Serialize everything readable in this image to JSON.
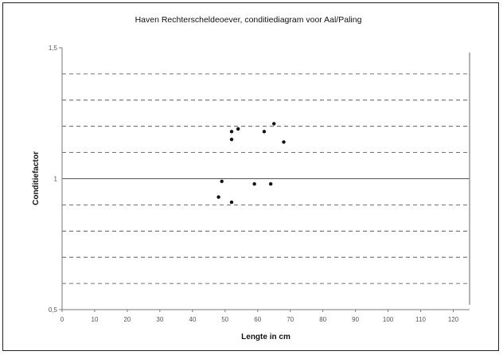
{
  "chart_data": {
    "type": "scatter",
    "title": "Haven Rechterscheldeoever, conditiediagram voor Aal/Paling",
    "xlabel": "Lengte in cm",
    "ylabel": "Conditiefactor",
    "xlim": [
      0,
      125
    ],
    "ylim": [
      0.5,
      1.5
    ],
    "x_ticks": [
      0,
      10,
      20,
      30,
      40,
      50,
      60,
      70,
      80,
      90,
      100,
      110,
      120
    ],
    "y_tick_labels": [
      {
        "value": 0.5,
        "label": "0,5"
      },
      {
        "value": 1.0,
        "label": "1"
      },
      {
        "value": 1.5,
        "label": "1,5"
      }
    ],
    "gridlines_dashed": [
      0.6,
      0.7,
      0.8,
      0.9,
      1.1,
      1.2,
      1.3,
      1.4
    ],
    "reference_line": 1.0,
    "grid": true,
    "points": [
      {
        "x": 48,
        "y": 0.93
      },
      {
        "x": 49,
        "y": 0.99
      },
      {
        "x": 52,
        "y": 0.91
      },
      {
        "x": 52,
        "y": 1.15
      },
      {
        "x": 52,
        "y": 1.18
      },
      {
        "x": 54,
        "y": 1.19
      },
      {
        "x": 59,
        "y": 0.98
      },
      {
        "x": 62,
        "y": 1.18
      },
      {
        "x": 64,
        "y": 0.98
      },
      {
        "x": 65,
        "y": 1.21
      },
      {
        "x": 68,
        "y": 1.14
      }
    ]
  }
}
